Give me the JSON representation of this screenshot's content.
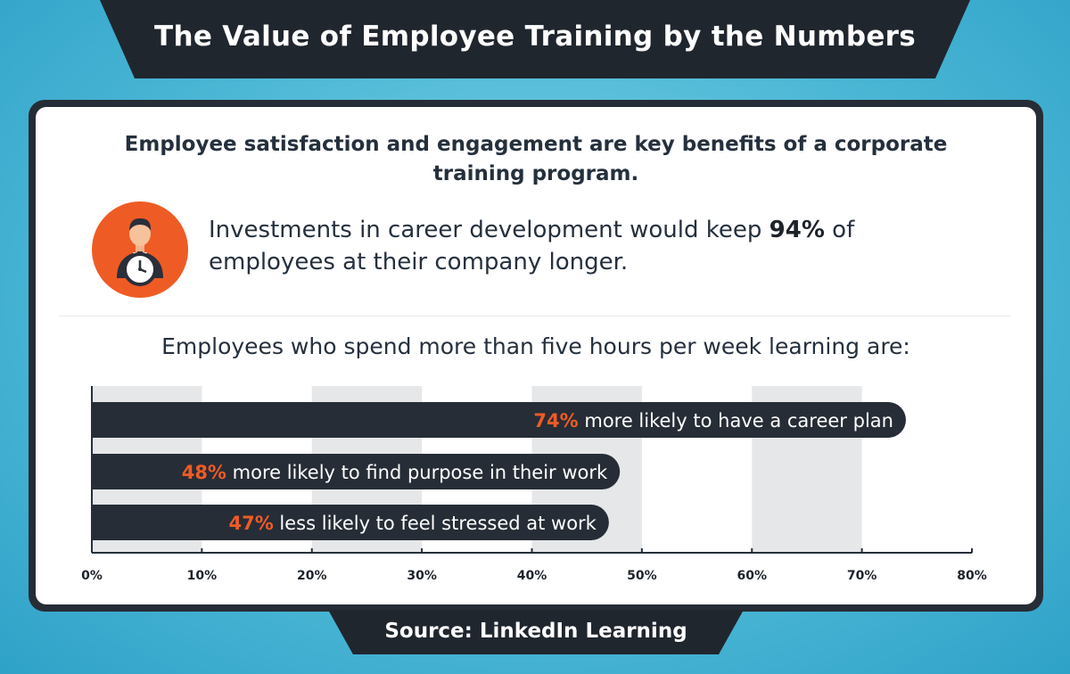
{
  "title": "The Value of Employee Training by the Numbers",
  "subtitle": "Employee satisfaction and engagement are key benefits of a corporate training program.",
  "highlight": {
    "before": "Investments in career development would keep ",
    "value": "94%",
    "after": " of employees at their company longer.",
    "icon": "businessman-clock-icon"
  },
  "chart_heading": "Employees who spend more than five hours per week learning are:",
  "source": "Source: LinkedIn Learning",
  "colors": {
    "background": "#4db8d6",
    "dark": "#262d36",
    "accent": "#ef5b25",
    "band": "#e6e7e9"
  },
  "chart_data": {
    "type": "bar",
    "orientation": "horizontal",
    "xlim": [
      0,
      80
    ],
    "ticks": [
      "0%",
      "10%",
      "20%",
      "30%",
      "40%",
      "50%",
      "60%",
      "70%",
      "80%"
    ],
    "tick_values": [
      0,
      10,
      20,
      30,
      40,
      50,
      60,
      70,
      80
    ],
    "grid": "alternating-bands",
    "bars": [
      {
        "value": 74,
        "value_label": "74%",
        "text": " more likely to have a career plan"
      },
      {
        "value": 48,
        "value_label": "48%",
        "text": " more likely to find purpose in their work"
      },
      {
        "value": 47,
        "value_label": "47%",
        "text": " less likely to feel stressed at work"
      }
    ]
  }
}
